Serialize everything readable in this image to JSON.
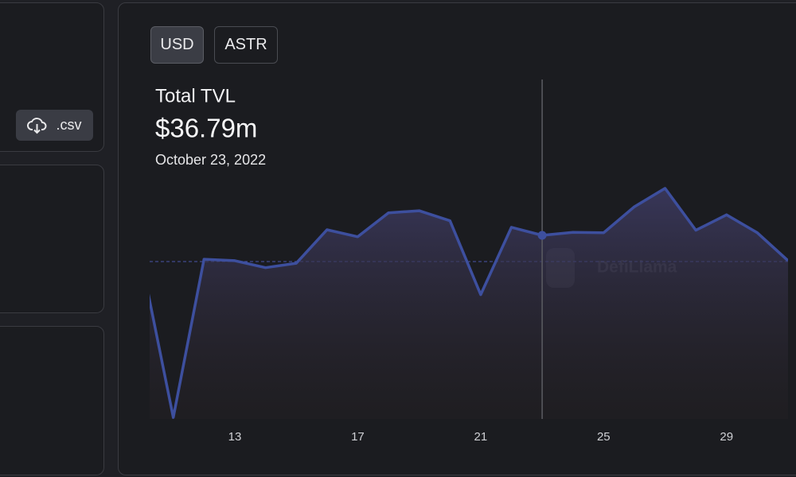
{
  "buttons": [
    "USD",
    "ASTR"
  ],
  "csv_button": ".csv",
  "chart_data": {
    "type": "area",
    "title": "Total TVL",
    "tooltip_value": "$36.79m",
    "tooltip_date": "October 23, 2022",
    "watermark": "DefiLlama",
    "x": [
      10,
      11,
      12,
      13,
      14,
      15,
      16,
      17,
      18,
      19,
      20,
      21,
      22,
      23,
      24,
      25,
      26,
      27,
      28,
      29,
      30,
      31
    ],
    "series": [
      {
        "name": "Total TVL",
        "color": "#3d4f9e",
        "values": [
          30.7,
          0.3,
          32.0,
          31.7,
          30.3,
          31.2,
          37.9,
          36.5,
          41.3,
          41.7,
          39.7,
          24.9,
          38.4,
          36.79,
          37.4,
          37.3,
          42.5,
          46.2,
          37.8,
          40.9,
          37.3,
          31.7
        ]
      }
    ],
    "highlight_index": 13,
    "xlim": [
      10.23,
      31
    ],
    "xticks": [
      13,
      17,
      21,
      25,
      29
    ],
    "ylim": [
      0,
      68
    ]
  }
}
